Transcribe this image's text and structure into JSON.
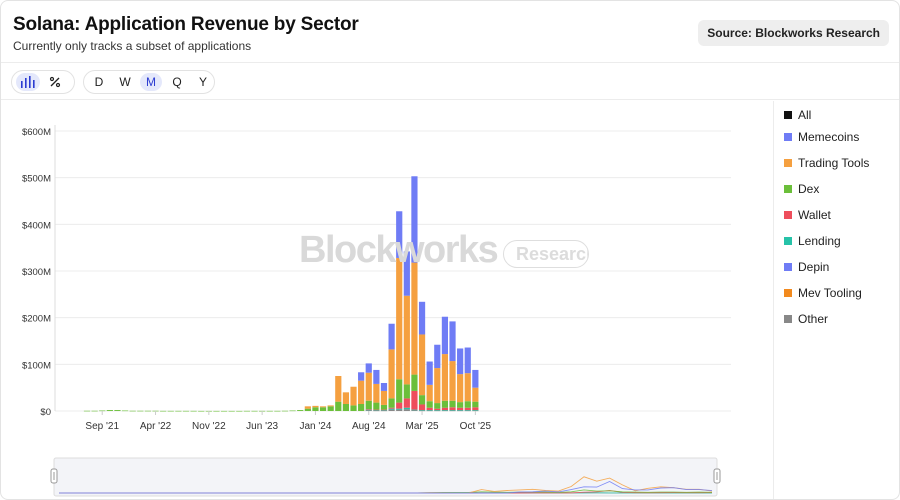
{
  "header": {
    "title": "Solana: Application Revenue by Sector",
    "subtitle": "Currently only tracks a subset of applications",
    "source_label": "Source: Blockworks Research"
  },
  "toolbar": {
    "chart_type_icons": [
      "bar-chart-icon",
      "percent-icon"
    ],
    "intervals": [
      "D",
      "W",
      "M",
      "Q",
      "Y"
    ],
    "active_interval": "M"
  },
  "watermark": {
    "brand": "Blockworks",
    "pill": "Research"
  },
  "legend": [
    {
      "label": "All",
      "color": "#111111"
    },
    {
      "label": "Memecoins",
      "color": "#6f7cf5"
    },
    {
      "label": "Trading Tools",
      "color": "#f5a040"
    },
    {
      "label": "Dex",
      "color": "#6bbf3a"
    },
    {
      "label": "Wallet",
      "color": "#ee4e5c"
    },
    {
      "label": "Lending",
      "color": "#26c2a8"
    },
    {
      "label": "Depin",
      "color": "#6f7cf5"
    },
    {
      "label": "Mev Tooling",
      "color": "#f28a1e"
    },
    {
      "label": "Other",
      "color": "#888888"
    }
  ],
  "chart_data": {
    "type": "bar",
    "stacked": true,
    "title": "Solana: Application Revenue by Sector",
    "ylim": [
      0,
      600
    ],
    "yticks": [
      0,
      100,
      200,
      300,
      400,
      500,
      600
    ],
    "ytick_labels": [
      "$0",
      "$100M",
      "$200M",
      "$300M",
      "$400M",
      "$500M",
      "$600M"
    ],
    "xtick_labels": [
      "Sep '21",
      "Apr '22",
      "Nov '22",
      "Jun '23",
      "Jan '24",
      "Aug '24",
      "Mar '25",
      "Oct '25"
    ],
    "categories": [
      "2021-07",
      "2021-08",
      "2021-09",
      "2021-10",
      "2021-11",
      "2021-12",
      "2022-01",
      "2022-02",
      "2022-03",
      "2022-04",
      "2022-05",
      "2022-06",
      "2022-07",
      "2022-08",
      "2022-09",
      "2022-10",
      "2022-11",
      "2022-12",
      "2023-01",
      "2023-02",
      "2023-03",
      "2023-04",
      "2023-05",
      "2023-06",
      "2023-07",
      "2023-08",
      "2023-09",
      "2023-10",
      "2023-11",
      "2023-12",
      "2024-01",
      "2024-02",
      "2024-03",
      "2024-04",
      "2024-05",
      "2024-06",
      "2024-07",
      "2024-08",
      "2024-09",
      "2024-10",
      "2024-11",
      "2024-12",
      "2025-01",
      "2025-02",
      "2025-03",
      "2025-04",
      "2025-05",
      "2025-06",
      "2025-07",
      "2025-08",
      "2025-09",
      "2025-10"
    ],
    "series": [
      {
        "name": "Other",
        "color": "#888888",
        "values": [
          0,
          0,
          0,
          0,
          0,
          0,
          0,
          0,
          0,
          0,
          0,
          0,
          0,
          0,
          0,
          0,
          0,
          0,
          0,
          0,
          0,
          0,
          0,
          0,
          0,
          0,
          0,
          0,
          0,
          0,
          0,
          0,
          0,
          0,
          0,
          0,
          0,
          2,
          1,
          1,
          3,
          3,
          4,
          2,
          1,
          1,
          1,
          1,
          1,
          1,
          1,
          1
        ]
      },
      {
        "name": "Lending",
        "color": "#26c2a8",
        "values": [
          0,
          0,
          0,
          0,
          0,
          0,
          0,
          0,
          0,
          0,
          0,
          0,
          0,
          0,
          0,
          0,
          0,
          0,
          0,
          0,
          0,
          0,
          0,
          0,
          0,
          0,
          0,
          0,
          0,
          0,
          0,
          0,
          0,
          0,
          0,
          0,
          0,
          1,
          1,
          1,
          2,
          2,
          3,
          1,
          1,
          1,
          1,
          1,
          1,
          1,
          1,
          1
        ]
      },
      {
        "name": "Wallet",
        "color": "#ee4e5c",
        "values": [
          0,
          0,
          0,
          0,
          0,
          0,
          0,
          0,
          0,
          0,
          0,
          0,
          0,
          0,
          0,
          0,
          0,
          0,
          0,
          0,
          0,
          0,
          0,
          0,
          0,
          0,
          0,
          0,
          0,
          0,
          0,
          0,
          0,
          0,
          0,
          0,
          0,
          1,
          1,
          1,
          2,
          13,
          20,
          40,
          12,
          5,
          3,
          5,
          6,
          5,
          5,
          6
        ]
      },
      {
        "name": "Dex",
        "color": "#6bbf3a",
        "values": [
          0.5,
          0.5,
          1,
          2,
          2,
          1,
          0.5,
          0.5,
          0.5,
          0.5,
          0.3,
          0.3,
          0.3,
          0.3,
          0.3,
          0.2,
          0.2,
          0.2,
          0.2,
          0.2,
          0.2,
          0.3,
          0.3,
          0.3,
          0.3,
          0.3,
          0.5,
          1,
          2,
          5,
          8,
          8,
          10,
          20,
          15,
          12,
          15,
          18,
          15,
          10,
          20,
          50,
          30,
          35,
          20,
          14,
          12,
          15,
          14,
          12,
          14,
          12
        ]
      },
      {
        "name": "Trading Tools",
        "color": "#f5a040",
        "values": [
          0,
          0,
          0,
          0,
          0,
          0,
          0,
          0,
          0,
          0,
          0,
          0,
          0,
          0,
          0,
          0,
          0,
          0,
          0,
          0,
          0,
          0,
          0,
          0,
          0,
          0,
          0,
          0,
          0,
          5,
          3,
          2,
          2,
          55,
          25,
          40,
          50,
          60,
          40,
          30,
          105,
          260,
          190,
          240,
          130,
          35,
          75,
          100,
          85,
          60,
          60,
          30
        ]
      },
      {
        "name": "Memecoins",
        "color": "#6f7cf5",
        "values": [
          0,
          0,
          0,
          0,
          0,
          0,
          0,
          0,
          0,
          0,
          0,
          0,
          0,
          0,
          0,
          0,
          0,
          0,
          0,
          0,
          0,
          0,
          0,
          0,
          0,
          0,
          0,
          0,
          0,
          0,
          0,
          0,
          0,
          0,
          0,
          0,
          18,
          20,
          30,
          17,
          55,
          100,
          95,
          185,
          70,
          50,
          50,
          80,
          85,
          55,
          55,
          38
        ]
      }
    ]
  }
}
